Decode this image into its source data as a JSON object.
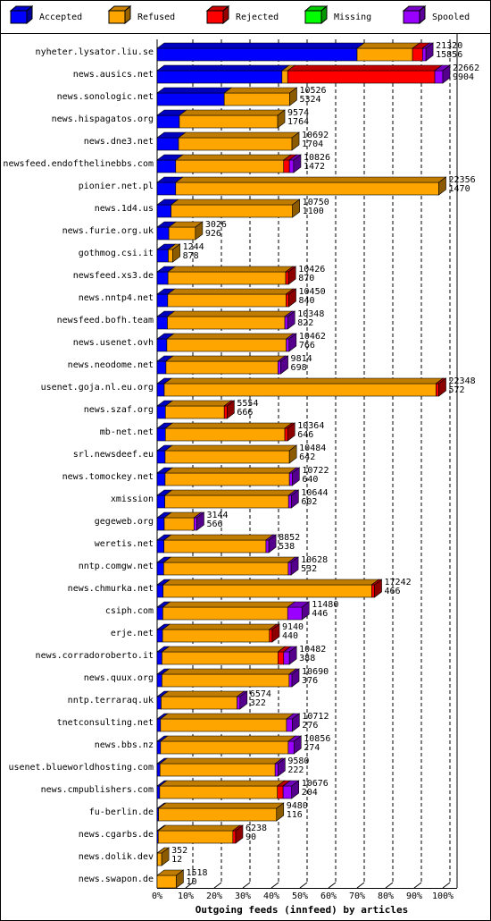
{
  "chart_data": {
    "type": "stacked-bar-3d",
    "title": "Outgoing feeds (innfeed) by articles",
    "categories": [
      "nyheter.lysator.liu.se",
      "news.ausics.net",
      "news.sonologic.net",
      "news.hispagatos.org",
      "news.dne3.net",
      "newsfeed.endofthelinebbs.com",
      "pionier.net.pl",
      "news.1d4.us",
      "news.furie.org.uk",
      "gothmog.csi.it",
      "newsfeed.xs3.de",
      "news.nntp4.net",
      "newsfeed.bofh.team",
      "news.usenet.ovh",
      "news.neodome.net",
      "usenet.goja.nl.eu.org",
      "news.szaf.org",
      "mb-net.net",
      "srl.newsdeef.eu",
      "news.tomockey.net",
      "xmission",
      "gegeweb.org",
      "weretis.net",
      "nntp.comgw.net",
      "news.chmurka.net",
      "csiph.com",
      "erje.net",
      "news.corradoroberto.it",
      "news.quux.org",
      "nntp.terraraq.uk",
      "tnetconsulting.net",
      "news.bbs.nz",
      "usenet.blueworldhosting.com",
      "news.cmpublishers.com",
      "fu-berlin.de",
      "news.cgarbs.de",
      "news.dolik.dev",
      "news.swapon.de"
    ],
    "offered": [
      21320,
      22662,
      10526,
      9574,
      10692,
      10826,
      22356,
      10750,
      3026,
      1244,
      10426,
      10450,
      10348,
      10462,
      9814,
      22348,
      5554,
      10364,
      10484,
      10722,
      10644,
      3144,
      8852,
      10628,
      17242,
      11480,
      9140,
      10482,
      10690,
      6574,
      10712,
      10856,
      9580,
      10676,
      9480,
      6238,
      352,
      1518
    ],
    "accepted": [
      15856,
      9904,
      5324,
      1764,
      1704,
      1472,
      1470,
      1100,
      926,
      878,
      870,
      840,
      822,
      766,
      698,
      572,
      666,
      646,
      642,
      640,
      602,
      566,
      538,
      532,
      466,
      446,
      440,
      388,
      376,
      322,
      276,
      274,
      222,
      204,
      116,
      90,
      12,
      10
    ],
    "series": [
      {
        "name": "Accepted",
        "color": "#0000ff",
        "values": [
          70.0,
          43.7,
          23.5,
          7.8,
          7.5,
          6.5,
          6.5,
          4.9,
          4.1,
          3.9,
          3.8,
          3.7,
          3.6,
          3.4,
          3.1,
          2.5,
          2.9,
          2.9,
          2.8,
          2.8,
          2.7,
          2.5,
          2.4,
          2.3,
          2.1,
          2.0,
          1.9,
          1.7,
          1.7,
          1.4,
          1.2,
          1.2,
          1.0,
          0.9,
          0.5,
          0.4,
          0.1,
          0
        ]
      },
      {
        "name": "Refused",
        "color": "#ffa500",
        "values": [
          19.4,
          2,
          22.9,
          34.4,
          39.7,
          37.8,
          92.1,
          42.5,
          9.3,
          1.6,
          41.2,
          41.4,
          41.1,
          41.8,
          39.2,
          95.1,
          20.6,
          41.8,
          43.5,
          43.5,
          43.3,
          10.4,
          35.7,
          43.6,
          73,
          43.7,
          37.4,
          40.6,
          44.5,
          26.6,
          44.1,
          44.7,
          40.3,
          41.2,
          41.3,
          26.1,
          1.5,
          6.7
        ]
      },
      {
        "name": "Rejected",
        "color": "#ff0000",
        "values": [
          3.5,
          51.5,
          0,
          0,
          0,
          2,
          0,
          0,
          0,
          0,
          1,
          1,
          0,
          0,
          0,
          1,
          1,
          1,
          0,
          0,
          0,
          0,
          0,
          0,
          1,
          0,
          1,
          2,
          0,
          0,
          0,
          0,
          0,
          2,
          0,
          1,
          0,
          0
        ]
      },
      {
        "name": "Missing",
        "color": "#00ff00",
        "values": [
          0,
          0,
          0,
          0,
          0,
          0,
          0,
          0,
          0,
          0,
          0,
          0,
          0,
          0,
          0,
          0,
          0,
          0,
          0,
          0,
          0,
          0,
          0,
          0,
          0,
          0,
          0,
          0,
          0,
          0,
          0,
          0,
          0,
          0,
          0,
          0,
          0,
          0
        ]
      },
      {
        "name": "Spooled",
        "color": "#9900ff",
        "values": [
          1.2,
          2.8,
          0,
          0,
          0,
          1.5,
          0,
          0,
          0,
          0,
          0,
          0,
          1,
          1,
          1,
          0,
          0,
          0,
          0,
          1,
          1,
          1,
          1,
          1,
          0,
          5,
          0,
          2,
          1,
          1,
          2,
          2,
          1,
          3,
          0,
          0,
          0,
          0
        ]
      }
    ],
    "xlim": [
      0,
      100
    ],
    "xticks": [
      {
        "value": 0,
        "label": "0%"
      },
      {
        "value": 10,
        "label": "10%"
      },
      {
        "value": 20,
        "label": "20%"
      },
      {
        "value": 30,
        "label": "30%"
      },
      {
        "value": 40,
        "label": "40%"
      },
      {
        "value": 50,
        "label": "50%"
      },
      {
        "value": 60,
        "label": "60%"
      },
      {
        "value": 70,
        "label": "70%"
      },
      {
        "value": 80,
        "label": "80%"
      },
      {
        "value": 90,
        "label": "90%"
      },
      {
        "value": 100,
        "label": "100%"
      }
    ],
    "grid": true,
    "legend": "top"
  }
}
